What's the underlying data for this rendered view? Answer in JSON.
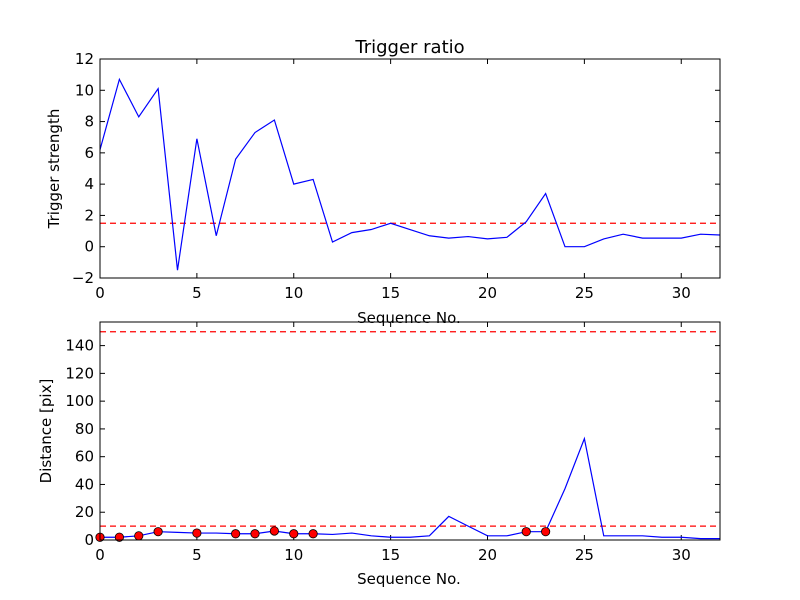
{
  "colors": {
    "series": "#0000ff",
    "threshold": "#ff0000",
    "marker_fill": "#ff0000",
    "axes": "#000000"
  },
  "chart_data": [
    {
      "type": "line",
      "title": "Trigger ratio",
      "xlabel": "Sequence No.",
      "ylabel": "Trigger strength",
      "xlim": [
        0,
        32
      ],
      "ylim": [
        -2,
        12
      ],
      "xticks": [
        0,
        5,
        10,
        15,
        20,
        25,
        30
      ],
      "yticks": [
        -2,
        0,
        2,
        4,
        6,
        8,
        10,
        12
      ],
      "grid": false,
      "x": [
        0,
        1,
        2,
        3,
        4,
        5,
        6,
        7,
        8,
        9,
        10,
        11,
        12,
        13,
        14,
        15,
        16,
        17,
        18,
        19,
        20,
        21,
        22,
        23,
        24,
        25,
        26,
        27,
        28,
        29,
        30,
        31,
        32
      ],
      "series": [
        {
          "values": [
            6.2,
            10.7,
            8.3,
            10.1,
            -1.5,
            6.9,
            0.7,
            5.6,
            7.3,
            8.1,
            4.0,
            4.3,
            0.3,
            0.9,
            1.1,
            1.5,
            1.1,
            0.7,
            0.55,
            0.65,
            0.5,
            0.6,
            1.6,
            3.4,
            0.0,
            0.0,
            0.5,
            0.8,
            0.55,
            0.55,
            0.55,
            0.8,
            0.75
          ]
        }
      ],
      "threshold_lines": [
        1.5
      ]
    },
    {
      "type": "line",
      "title": "",
      "xlabel": "Sequence No.",
      "ylabel": "Distance [pix]",
      "xlim": [
        0,
        32
      ],
      "ylim": [
        0,
        157
      ],
      "xticks": [
        0,
        5,
        10,
        15,
        20,
        25,
        30
      ],
      "yticks": [
        0,
        20,
        40,
        60,
        80,
        100,
        120,
        140
      ],
      "grid": false,
      "x": [
        0,
        1,
        2,
        3,
        4,
        5,
        6,
        7,
        8,
        9,
        10,
        11,
        12,
        13,
        14,
        15,
        16,
        17,
        18,
        19,
        20,
        21,
        22,
        23,
        24,
        25,
        26,
        27,
        28,
        29,
        30,
        31,
        32
      ],
      "series": [
        {
          "values": [
            2,
            2,
            3,
            6,
            5.5,
            5,
            5,
            4.5,
            4.5,
            6.5,
            4.5,
            4.5,
            4,
            5,
            3,
            2,
            2,
            3,
            17,
            10,
            3,
            3,
            6,
            6,
            37,
            73,
            3,
            3,
            3,
            2,
            2,
            1,
            1
          ]
        }
      ],
      "markers": {
        "x": [
          0,
          1,
          2,
          3,
          5,
          7,
          8,
          9,
          10,
          11,
          22,
          23
        ],
        "y": [
          2,
          2,
          3,
          6,
          5,
          4.5,
          4.5,
          6.5,
          4.5,
          4.5,
          6,
          6
        ]
      },
      "threshold_lines": [
        150,
        10
      ]
    }
  ]
}
